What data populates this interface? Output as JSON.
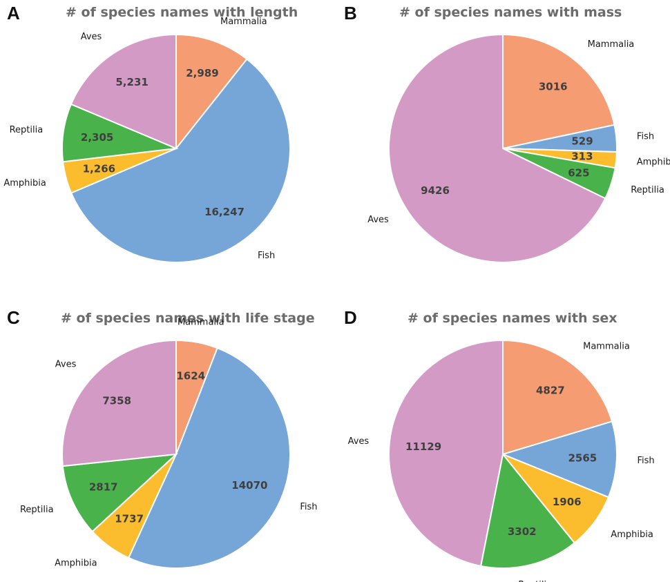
{
  "chart_data": [
    {
      "type": "pie",
      "panel": "A",
      "title": "# of species names with length",
      "slices": [
        {
          "label": "Mammalia",
          "value": 2989,
          "display": "2,989",
          "color": "#f59c73"
        },
        {
          "label": "Fish",
          "value": 16247,
          "display": "16,247",
          "color": "#76a5d8"
        },
        {
          "label": "Amphibia",
          "value": 1266,
          "display": "1,266",
          "color": "#fbbd2e"
        },
        {
          "label": "Reptilia",
          "value": 2305,
          "display": "2,305",
          "color": "#49b24b"
        },
        {
          "label": "Aves",
          "value": 5231,
          "display": "5,231",
          "color": "#d49ac6"
        }
      ]
    },
    {
      "type": "pie",
      "panel": "B",
      "title": "# of species names with mass",
      "slices": [
        {
          "label": "Mammalia",
          "value": 3016,
          "display": "3016",
          "color": "#f59c73"
        },
        {
          "label": "Fish",
          "value": 529,
          "display": "529",
          "color": "#76a5d8"
        },
        {
          "label": "Amphibia",
          "value": 313,
          "display": "313",
          "color": "#fbbd2e"
        },
        {
          "label": "Reptilia",
          "value": 625,
          "display": "625",
          "color": "#49b24b"
        },
        {
          "label": "Aves",
          "value": 9426,
          "display": "9426",
          "color": "#d49ac6"
        }
      ]
    },
    {
      "type": "pie",
      "panel": "C",
      "title": "# of species names with life stage",
      "slices": [
        {
          "label": "Mammalia",
          "value": 1624,
          "display": "1624",
          "color": "#f59c73"
        },
        {
          "label": "Fish",
          "value": 14070,
          "display": "14070",
          "color": "#76a5d8"
        },
        {
          "label": "Amphibia",
          "value": 1737,
          "display": "1737",
          "color": "#fbbd2e"
        },
        {
          "label": "Reptilia",
          "value": 2817,
          "display": "2817",
          "color": "#49b24b"
        },
        {
          "label": "Aves",
          "value": 7358,
          "display": "7358",
          "color": "#d49ac6"
        }
      ]
    },
    {
      "type": "pie",
      "panel": "D",
      "title": "# of species names with sex",
      "slices": [
        {
          "label": "Mammalia",
          "value": 4827,
          "display": "4827",
          "color": "#f59c73"
        },
        {
          "label": "Fish",
          "value": 2565,
          "display": "2565",
          "color": "#76a5d8"
        },
        {
          "label": "Amphibia",
          "value": 1906,
          "display": "1906",
          "color": "#fbbd2e"
        },
        {
          "label": "Reptilia",
          "value": 3302,
          "display": "3302",
          "color": "#49b24b"
        },
        {
          "label": "Aves",
          "value": 11129,
          "display": "11129",
          "color": "#d49ac6"
        }
      ]
    }
  ]
}
